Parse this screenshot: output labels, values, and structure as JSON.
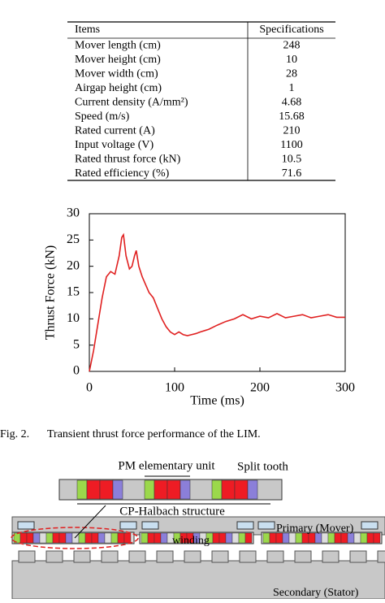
{
  "table": {
    "headers": [
      "Items",
      "Specifications"
    ],
    "rows": [
      [
        "Mover length  (cm)",
        "248"
      ],
      [
        "Mover height (cm)",
        "10"
      ],
      [
        "Mover width (cm)",
        "28"
      ],
      [
        "Airgap height (cm)",
        "1"
      ],
      [
        "Current density (A/mm²)",
        "4.68"
      ],
      [
        "Speed (m/s)",
        "15.68"
      ],
      [
        "Rated current (A)",
        "210"
      ],
      [
        "Input voltage (V)",
        "1100"
      ],
      [
        "Rated thrust force (kN)",
        "10.5"
      ],
      [
        "Rated efficiency (%)",
        "71.6"
      ]
    ]
  },
  "chart_data": {
    "type": "line",
    "xlabel": "Time (ms)",
    "ylabel": "Thrust Force (kN)",
    "x": [
      0,
      5,
      10,
      15,
      20,
      25,
      30,
      35,
      38,
      40,
      43,
      47,
      50,
      53,
      55,
      58,
      62,
      66,
      70,
      75,
      80,
      85,
      90,
      95,
      100,
      105,
      110,
      115,
      120,
      125,
      130,
      140,
      150,
      160,
      170,
      180,
      190,
      200,
      210,
      220,
      230,
      240,
      250,
      260,
      270,
      280,
      290,
      300
    ],
    "series": [
      {
        "name": "Thrust force",
        "color": "#e02020",
        "values": [
          0,
          4,
          9,
          14,
          18,
          19,
          18.5,
          22,
          25.5,
          26,
          22,
          19.5,
          20,
          22,
          23,
          20,
          18,
          16.5,
          15,
          14,
          12,
          10,
          8.5,
          7.5,
          7,
          7.5,
          7,
          6.8,
          7,
          7.2,
          7.5,
          8,
          8.8,
          9.5,
          10,
          10.8,
          10,
          10.5,
          10.2,
          11,
          10.2,
          10.5,
          10.8,
          10.2,
          10.5,
          10.8,
          10.3,
          10.3
        ]
      }
    ],
    "xlim": [
      0,
      300
    ],
    "ylim": [
      0,
      30
    ],
    "xticks": [
      0,
      100,
      200,
      300
    ],
    "yticks": [
      0,
      5,
      10,
      15,
      20,
      25,
      30
    ]
  },
  "caption": {
    "label": "Fig. 2.",
    "text": "Transient thrust force performance of the LIM."
  },
  "diagram": {
    "pm_unit": "PM elementary unit",
    "split_tooth": "Split tooth",
    "halbach": "CP-Halbach structure",
    "primary": "Primary (Mover)",
    "winding": "winding",
    "secondary": "Secondary (Stator)"
  }
}
